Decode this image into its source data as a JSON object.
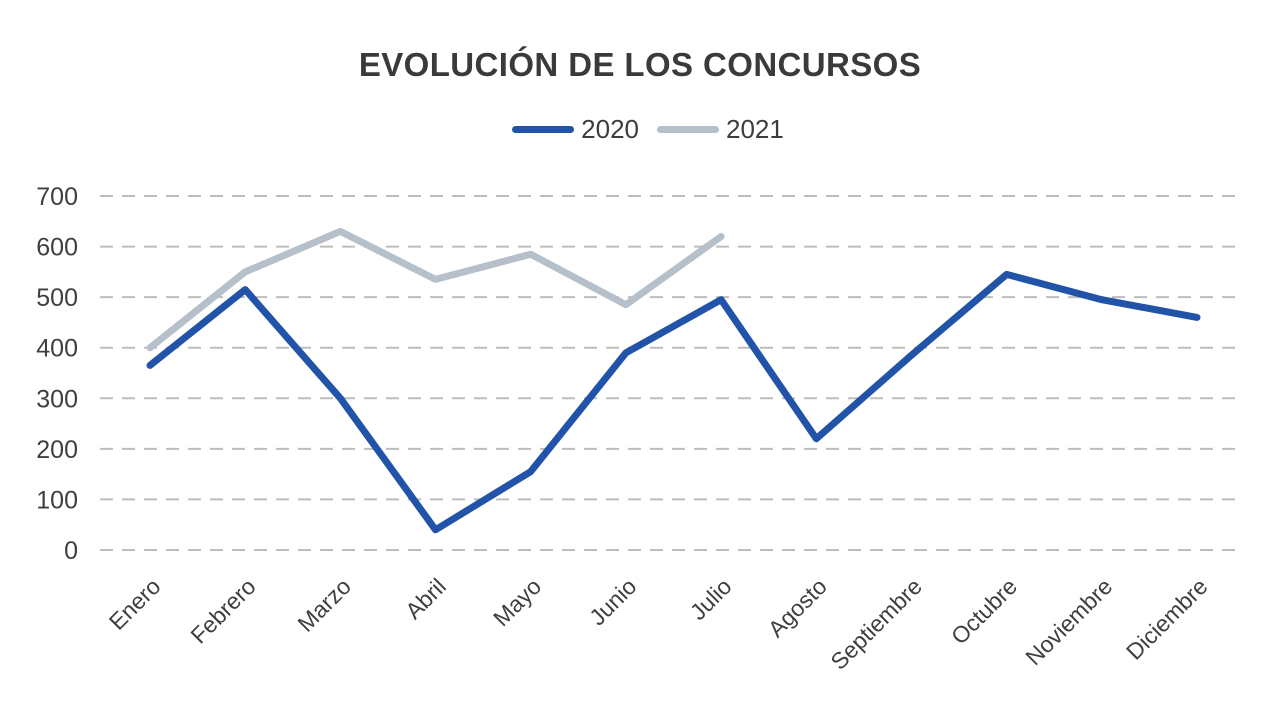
{
  "chart_data": {
    "type": "line",
    "title": "EVOLUCIÓN DE LOS CONCURSOS",
    "categories": [
      "Enero",
      "Febrero",
      "Marzo",
      "Abril",
      "Mayo",
      "Junio",
      "Julio",
      "Agosto",
      "Septiembre",
      "Octubre",
      "Noviembre",
      "Diciembre"
    ],
    "series": [
      {
        "name": "2021",
        "color": "#b6c0ca",
        "values": [
          400,
          550,
          630,
          535,
          585,
          485,
          620,
          null,
          null,
          null,
          null,
          null
        ]
      },
      {
        "name": "2020",
        "color": "#2153a8",
        "values": [
          365,
          515,
          300,
          40,
          155,
          390,
          495,
          220,
          385,
          545,
          495,
          460
        ]
      }
    ],
    "legend_order": [
      "2020",
      "2021"
    ],
    "ylim": [
      0,
      700
    ],
    "y_tick_step": 100,
    "y_tick_labels": [
      "0",
      "100",
      "200",
      "300",
      "400",
      "500",
      "600",
      "700"
    ],
    "grid": "horizontal-dashed",
    "legend_position": "top-center",
    "colors": {
      "series_2020": "#2153a8",
      "series_2021": "#b6c0ca",
      "gridline": "#bdbdbd",
      "axis_text": "#3f3f3f",
      "title_text": "#3a3a3a",
      "background": "#ffffff"
    }
  }
}
